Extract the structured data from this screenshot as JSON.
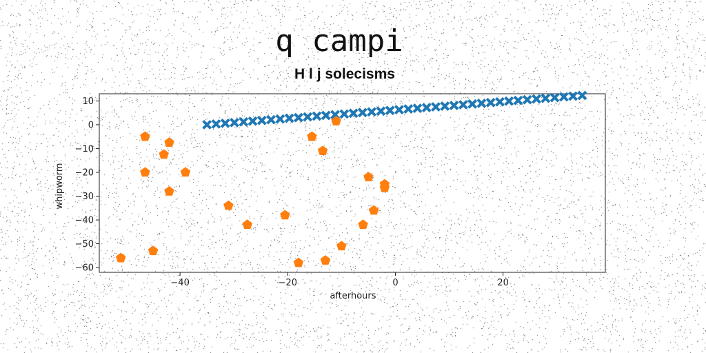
{
  "chart_data": {
    "type": "scatter",
    "title": "q campi",
    "subtitle": "H l j solecisms",
    "xlabel": "afterhours",
    "ylabel": "whipworm",
    "xlim": [
      -55,
      39
    ],
    "ylim": [
      -62,
      13
    ],
    "xticks": [
      -40,
      -20,
      0,
      20
    ],
    "yticks": [
      10,
      0,
      -10,
      -20,
      -30,
      -40,
      -50,
      -60
    ],
    "grid": false,
    "legend": "none",
    "series": [
      {
        "marker": "x",
        "color": "#1f77b4",
        "x": [
          -35,
          -33.3,
          -31.6,
          -29.9,
          -28.2,
          -26.5,
          -24.8,
          -23.1,
          -21.4,
          -19.7,
          -18,
          -16.3,
          -14.6,
          -12.9,
          -11.2,
          -9.5,
          -7.8,
          -6.1,
          -4.4,
          -2.7,
          -1,
          0.7,
          2.4,
          4.1,
          5.8,
          7.5,
          9.2,
          10.9,
          12.6,
          14.3,
          16,
          17.7,
          19.4,
          21.1,
          22.8,
          24.5,
          26.2,
          27.9,
          29.6,
          31.3,
          33,
          34.7
        ],
        "y": [
          0,
          0.3,
          0.6,
          0.9,
          1.2,
          1.5,
          1.8,
          2.1,
          2.4,
          2.7,
          3,
          3.3,
          3.6,
          3.9,
          4.2,
          4.5,
          4.8,
          5.1,
          5.4,
          5.7,
          6,
          6.3,
          6.6,
          6.9,
          7.2,
          7.5,
          7.8,
          8.1,
          8.4,
          8.7,
          9,
          9.3,
          9.6,
          9.9,
          10.2,
          10.5,
          10.8,
          11.1,
          11.4,
          11.7,
          12,
          12.3
        ]
      },
      {
        "marker": "pentagon",
        "color": "#ff7f0e",
        "x": [
          -46.5,
          -42,
          -43,
          -46.5,
          -39,
          -42,
          -51,
          -45,
          -31,
          -27.5,
          -20.5,
          -18,
          -15.5,
          -13.5,
          -13,
          -10,
          -11,
          -6,
          -5,
          -4,
          -2,
          -2
        ],
        "y": [
          -5,
          -7.5,
          -12.5,
          -20,
          -20,
          -28,
          -56,
          -53,
          -34,
          -42,
          -38,
          -58,
          -5,
          -11,
          -57,
          -51,
          1.5,
          -42,
          -22,
          -36,
          -25,
          -26.5
        ]
      }
    ]
  }
}
